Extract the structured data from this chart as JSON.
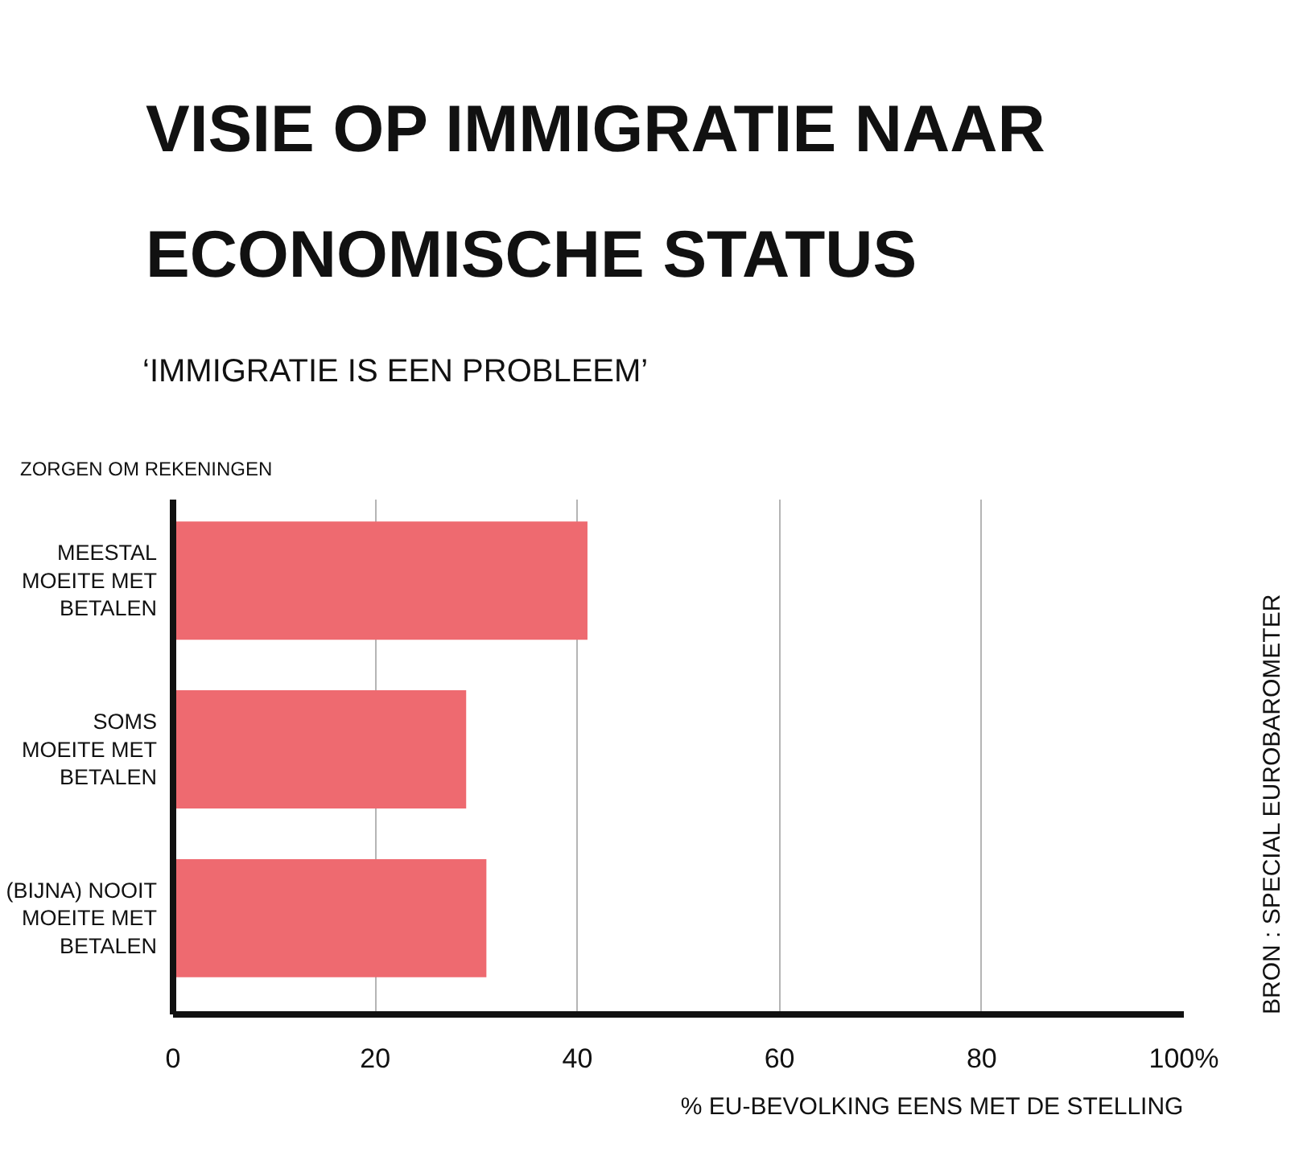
{
  "chart_data": {
    "type": "bar",
    "orientation": "horizontal",
    "title": "VISIE OP IMMIGRATIE NAAR ECONOMISCHE STATUS",
    "subtitle": "‘IMMIGRATIE IS EEN PROBLEEM’",
    "ylabel": "ZORGEN OM REKENINGEN",
    "xlabel": "% EU-BEVOLKING EENS MET DE STELLING",
    "categories": [
      "MEESTAL\nMOEITE MET\nBETALEN",
      "SOMS\nMOEITE MET\nBETALEN",
      "(BIJNA) NOOIT\nMOEITE MET\nBETALEN"
    ],
    "values": [
      41,
      29,
      31
    ],
    "color": "#ee6a70",
    "xlim": [
      0,
      100
    ],
    "xticks": [
      0,
      20,
      40,
      60,
      80,
      {
        "value": 100,
        "label": "100%"
      }
    ],
    "grid": "x",
    "annotations": [
      "BRON : SPECIAL EUROBAROMETER"
    ]
  }
}
